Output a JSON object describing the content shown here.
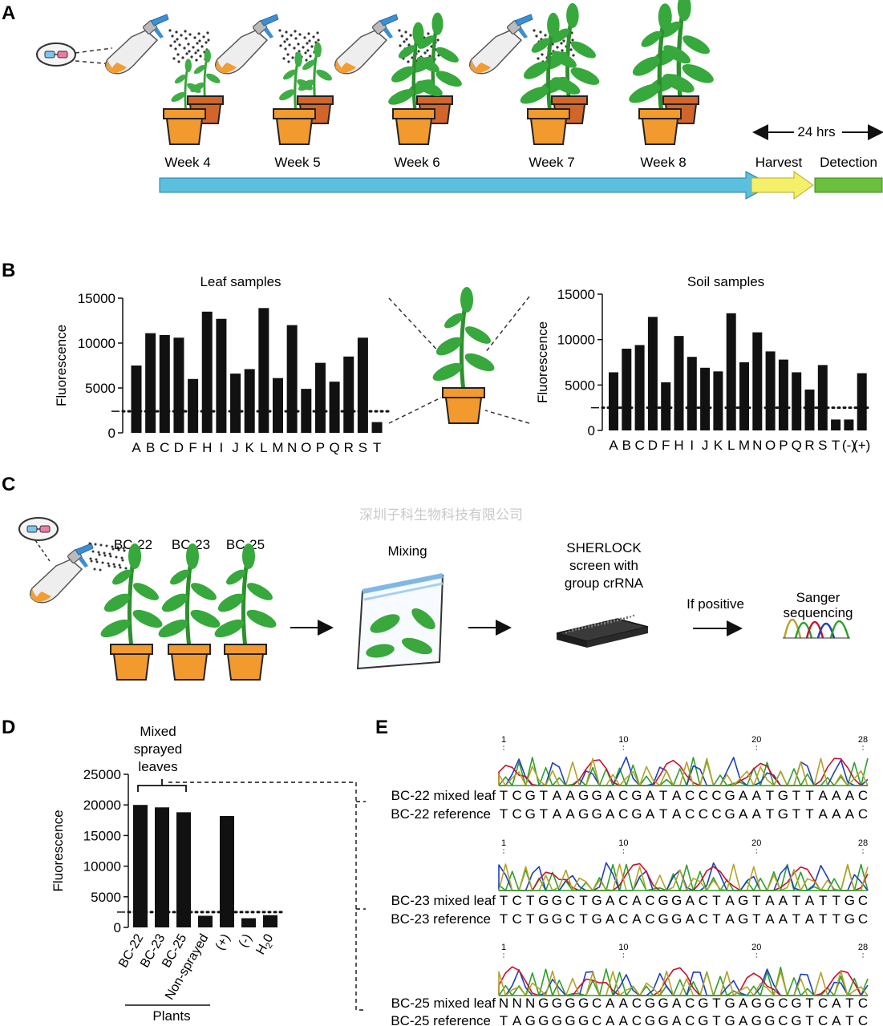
{
  "panels": {
    "a": {
      "label": "A",
      "weeks": [
        "Week 4",
        "Week 5",
        "Week 6",
        "Week 7",
        "Week 8"
      ],
      "span_label": "24 hrs",
      "harvest": "Harvest",
      "detection": "Detection",
      "colors": {
        "timeline": "#5bc0de",
        "harvest": "#f4f06a",
        "detection": "#6bbf3e",
        "pot": "#f0922a",
        "pot_back": "#d2652a",
        "leaf": "#3aa03a"
      }
    },
    "b": {
      "label": "B"
    },
    "c": {
      "label": "C",
      "plants": [
        "BC-22",
        "BC-23",
        "BC-25"
      ],
      "mixing": "Mixing",
      "sherlock": [
        "SHERLOCK",
        "screen with",
        "group crRNA"
      ],
      "if_positive": "If positive",
      "sanger": [
        "Sanger",
        "sequencing"
      ],
      "watermark": "深圳子科生物科技有限公司"
    },
    "d": {
      "label": "D",
      "group_label": [
        "Mixed",
        "sprayed",
        "leaves"
      ],
      "plants_label": "Plants"
    },
    "e": {
      "label": "E",
      "ticks": [
        "1",
        "10",
        "20",
        "28"
      ],
      "rows": [
        {
          "mixed_label": "BC-22 mixed leaf",
          "mixed_seq": "TCGTAAGGACGATACCCGAATGTTAAAC",
          "ref_label": "BC-22 reference",
          "ref_seq": "TCGTAAGGACGATACCCGAATGTTAAAC"
        },
        {
          "mixed_label": "BC-23 mixed leaf",
          "mixed_seq": "TCTGGCTGACACGGACTAGTAATATTGC",
          "ref_label": "BC-23 reference",
          "ref_seq": "TCTGGCTGACACGGACTAGTAATATTGC"
        },
        {
          "mixed_label": "BC-25 mixed leaf",
          "mixed_seq": "NNNGGGGCAACGGACGTGAGGCGTCATC",
          "ref_label": "BC-25 reference",
          "ref_seq": "TAGGGGGCAACGGACGTGAGGCGTCATC"
        }
      ],
      "trace_colors": [
        "#2ca02c",
        "#1f3fbf",
        "#c8102e",
        "#b5a22a"
      ]
    }
  },
  "chart_data": [
    {
      "type": "bar",
      "title": "Leaf samples",
      "ylabel": "Fluorescence",
      "ylim": [
        0,
        15000
      ],
      "yticks": [
        0,
        5000,
        10000,
        15000
      ],
      "categories": [
        "A",
        "B",
        "C",
        "D",
        "F",
        "H",
        "I",
        "J",
        "K",
        "L",
        "M",
        "N",
        "O",
        "P",
        "Q",
        "R",
        "S",
        "T"
      ],
      "values": [
        7500,
        11100,
        10900,
        10600,
        6000,
        13500,
        12700,
        6600,
        7100,
        13900,
        6100,
        12000,
        4900,
        7800,
        5700,
        8500,
        10600,
        1200
      ],
      "threshold": 2400
    },
    {
      "type": "bar",
      "title": "Soil samples",
      "ylabel": "Fluorescence",
      "ylim": [
        0,
        15000
      ],
      "yticks": [
        0,
        5000,
        10000,
        15000
      ],
      "categories": [
        "A",
        "B",
        "C",
        "D",
        "F",
        "H",
        "I",
        "J",
        "K",
        "L",
        "M",
        "N",
        "O",
        "P",
        "Q",
        "R",
        "S",
        "T",
        "(-)",
        "(+)"
      ],
      "values": [
        6400,
        9000,
        9400,
        12500,
        5300,
        10400,
        8100,
        6900,
        6500,
        12900,
        7500,
        10800,
        8700,
        7800,
        6400,
        4500,
        7200,
        1200,
        1200,
        6300
      ],
      "threshold": 2500
    },
    {
      "type": "bar",
      "title": "",
      "ylabel": "Fluorescence",
      "ylim": [
        0,
        25000
      ],
      "yticks": [
        0,
        5000,
        10000,
        15000,
        20000,
        25000
      ],
      "categories": [
        "BC-22",
        "BC-23",
        "BC-25",
        "Non-sprayed",
        "(+)",
        "(-)",
        "H2O"
      ],
      "values": [
        20000,
        19600,
        18800,
        1900,
        18200,
        1500,
        2000
      ],
      "threshold": 2500
    }
  ]
}
